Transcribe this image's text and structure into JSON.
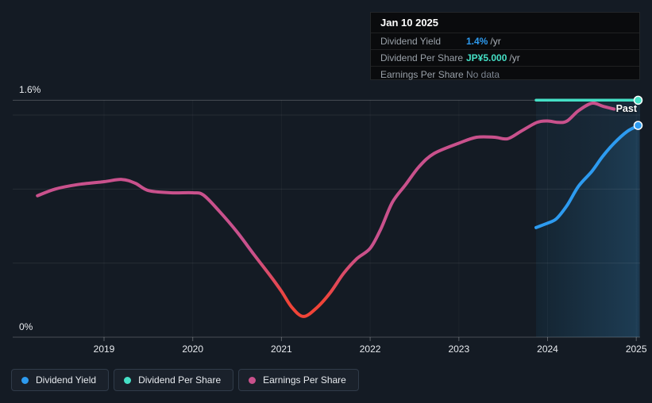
{
  "tooltip": {
    "date": "Jan 10 2025",
    "rows": [
      {
        "label": "Dividend Yield",
        "value": "1.4%",
        "suffix": "/yr",
        "color": "#2d9bf0",
        "muted": false
      },
      {
        "label": "Dividend Per Share",
        "value": "JP¥5.000",
        "suffix": "/yr",
        "color": "#45e0c6",
        "muted": false
      },
      {
        "label": "Earnings Per Share",
        "value": "No data",
        "suffix": "",
        "color": "#7d8590",
        "muted": true
      }
    ]
  },
  "labels": {
    "past": "Past",
    "y_max": "1.6%",
    "y_min": "0%"
  },
  "legend": [
    {
      "label": "Dividend Yield",
      "color": "#2d9bf0",
      "name": "dividend-yield"
    },
    {
      "label": "Dividend Per Share",
      "color": "#45e0c6",
      "name": "dividend-per-share"
    },
    {
      "label": "Earnings Per Share",
      "color": "#c9518c",
      "name": "earnings-per-share"
    }
  ],
  "colors": {
    "background": "#141b24",
    "dividend_yield_line": "#2d9bf0",
    "dividend_per_share_line": "#45e0c6",
    "earnings_high": "#c9518c",
    "earnings_low": "#f04438"
  },
  "chart_data": {
    "type": "line",
    "title": "Dividend yield and earnings history with past region highlighted",
    "x_ticks": [
      2019,
      2020,
      2021,
      2022,
      2023,
      2024,
      2025
    ],
    "xlim": [
      2017.97,
      2025.04
    ],
    "ylim": [
      0,
      1.6
    ],
    "y_unit": "%",
    "y_gridlines_pct": [
      0,
      0.5,
      1.0,
      1.5,
      1.6
    ],
    "y_labeled_gridlines": [
      0,
      1.6
    ],
    "legend_position": "bottom-left",
    "past_region_start": 2023.87,
    "hover_date": "Jan 10 2025",
    "series": [
      {
        "name": "Earnings Per Share",
        "style": "gradient-magenta-to-red-at-low-values",
        "points": [
          [
            2018.25,
            0.955
          ],
          [
            2018.45,
            1.0
          ],
          [
            2018.7,
            1.03
          ],
          [
            2019.0,
            1.05
          ],
          [
            2019.2,
            1.065
          ],
          [
            2019.35,
            1.04
          ],
          [
            2019.5,
            0.99
          ],
          [
            2019.75,
            0.975
          ],
          [
            2020.0,
            0.975
          ],
          [
            2020.12,
            0.96
          ],
          [
            2020.3,
            0.85
          ],
          [
            2020.5,
            0.71
          ],
          [
            2020.7,
            0.55
          ],
          [
            2020.88,
            0.41
          ],
          [
            2021.0,
            0.31
          ],
          [
            2021.12,
            0.2
          ],
          [
            2021.25,
            0.14
          ],
          [
            2021.4,
            0.2
          ],
          [
            2021.55,
            0.3
          ],
          [
            2021.7,
            0.43
          ],
          [
            2021.85,
            0.53
          ],
          [
            2022.0,
            0.6
          ],
          [
            2022.12,
            0.73
          ],
          [
            2022.25,
            0.91
          ],
          [
            2022.4,
            1.03
          ],
          [
            2022.55,
            1.15
          ],
          [
            2022.72,
            1.24
          ],
          [
            2023.0,
            1.31
          ],
          [
            2023.2,
            1.35
          ],
          [
            2023.4,
            1.35
          ],
          [
            2023.55,
            1.34
          ],
          [
            2023.7,
            1.39
          ],
          [
            2023.88,
            1.45
          ],
          [
            2024.0,
            1.46
          ],
          [
            2024.12,
            1.45
          ],
          [
            2024.22,
            1.46
          ],
          [
            2024.35,
            1.53
          ],
          [
            2024.5,
            1.58
          ],
          [
            2024.62,
            1.56
          ],
          [
            2024.75,
            1.54
          ]
        ]
      },
      {
        "name": "Dividend Yield",
        "style": "solid-blue-with-area-fill-and-end-marker",
        "points": [
          [
            2023.87,
            0.74
          ],
          [
            2024.0,
            0.77
          ],
          [
            2024.1,
            0.8
          ],
          [
            2024.22,
            0.89
          ],
          [
            2024.35,
            1.02
          ],
          [
            2024.5,
            1.12
          ],
          [
            2024.62,
            1.22
          ],
          [
            2024.75,
            1.31
          ],
          [
            2024.9,
            1.39
          ],
          [
            2025.03,
            1.43
          ]
        ],
        "end_value_label": "1.4%"
      },
      {
        "name": "Dividend Per Share",
        "style": "solid-teal-flat-at-top-with-end-marker",
        "points": [
          [
            2023.87,
            1.6
          ],
          [
            2025.03,
            1.6
          ]
        ],
        "end_value_label": "JP¥5.000"
      }
    ]
  }
}
